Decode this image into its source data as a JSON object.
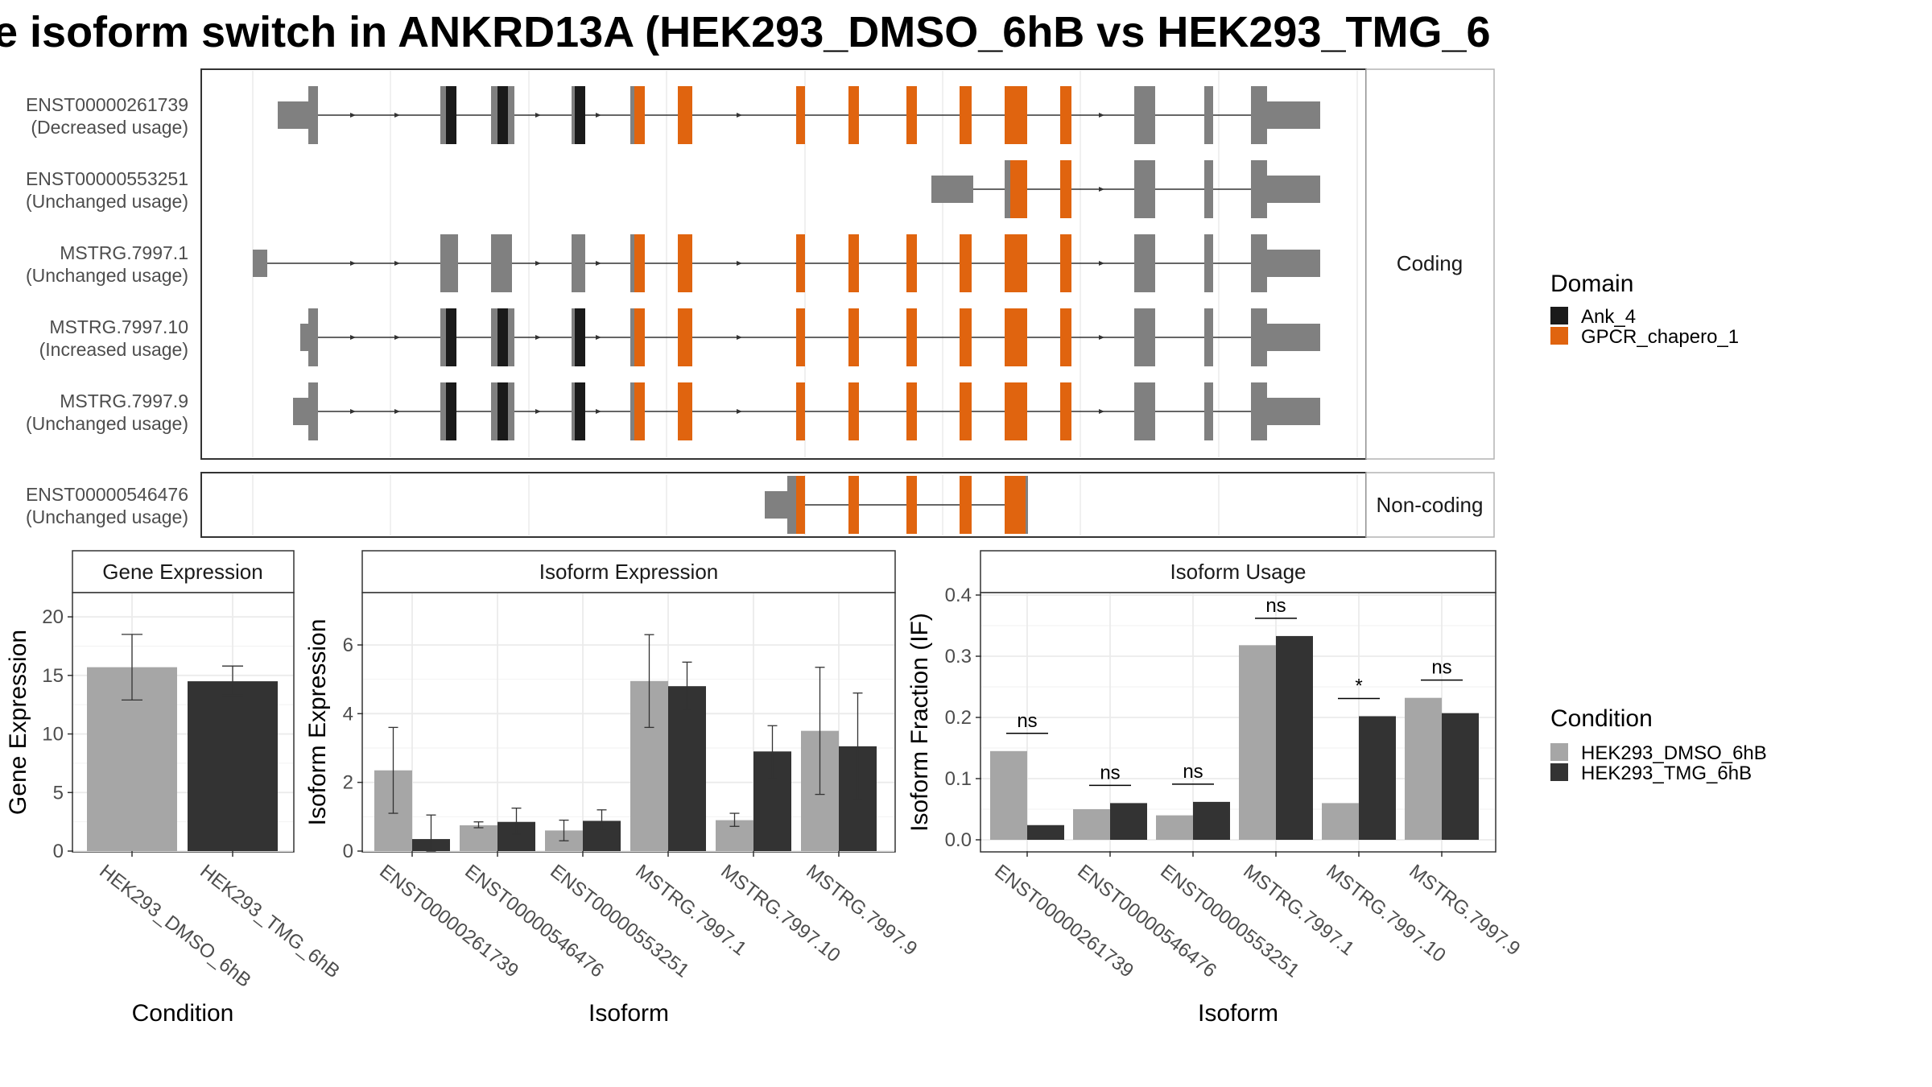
{
  "page_title": "e isoform switch in ANKRD13A (HEK293_DMSO_6hB vs HEK293_TMG_6",
  "colors": {
    "Ank_4": "#1a1a1a",
    "GPCR_chapero_1": "#e0640f",
    "utr": "#808080",
    "HEK293_DMSO_6hB": "#a6a6a6",
    "HEK293_TMG_6hB": "#333333"
  },
  "legends": {
    "domain": {
      "title": "Domain",
      "items": [
        "Ank_4",
        "GPCR_chapero_1"
      ]
    },
    "condition": {
      "title": "Condition",
      "items": [
        "HEK293_DMSO_6hB",
        "HEK293_TMG_6hB"
      ]
    }
  },
  "chart_data": [
    {
      "type": "gene-structure",
      "facets": [
        "Coding",
        "Non-coding"
      ],
      "transcripts": [
        {
          "id": "ENST00000261739",
          "usage": "(Decreased usage)",
          "facet": "Coding"
        },
        {
          "id": "ENST00000553251",
          "usage": "(Unchanged usage)",
          "facet": "Coding"
        },
        {
          "id": "MSTRG.7997.1",
          "usage": "(Unchanged usage)",
          "facet": "Coding"
        },
        {
          "id": "MSTRG.7997.10",
          "usage": "(Increased usage)",
          "facet": "Coding"
        },
        {
          "id": "MSTRG.7997.9",
          "usage": "(Unchanged usage)",
          "facet": "Coding"
        },
        {
          "id": "ENST00000546476",
          "usage": "(Unchanged usage)",
          "facet": "Non-coding"
        }
      ]
    },
    {
      "type": "bar",
      "title": "Gene Expression",
      "xlabel": "Condition",
      "ylabel": "Gene Expression",
      "ylim": [
        0,
        22
      ],
      "yticks": [
        0,
        5,
        10,
        15,
        20
      ],
      "categories": [
        "HEK293_DMSO_6hB",
        "HEK293_TMG_6hB"
      ],
      "values": [
        15.7,
        14.5
      ],
      "error_low": [
        12.9,
        13.3
      ],
      "error_high": [
        18.5,
        15.8
      ]
    },
    {
      "type": "bar",
      "title": "Isoform Expression",
      "xlabel": "Isoform",
      "ylabel": "Isoform Expression",
      "ylim": [
        0,
        7.5
      ],
      "yticks": [
        0,
        2,
        4,
        6
      ],
      "categories": [
        "ENST00000261739",
        "ENST00000546476",
        "ENST00000553251",
        "MSTRG.7997.1",
        "MSTRG.7997.10",
        "MSTRG.7997.9"
      ],
      "series": [
        {
          "name": "HEK293_DMSO_6hB",
          "values": [
            2.35,
            0.75,
            0.6,
            4.95,
            0.9,
            3.5
          ],
          "error_low": [
            1.1,
            0.68,
            0.3,
            3.6,
            0.72,
            1.65
          ],
          "error_high": [
            3.6,
            0.85,
            0.9,
            6.3,
            1.1,
            5.35
          ]
        },
        {
          "name": "HEK293_TMG_6hB",
          "values": [
            0.35,
            0.85,
            0.88,
            4.8,
            2.9,
            3.05
          ],
          "error_low": [
            0.0,
            0.5,
            0.6,
            4.1,
            2.1,
            1.5
          ],
          "error_high": [
            1.05,
            1.25,
            1.2,
            5.5,
            3.65,
            4.6
          ]
        }
      ]
    },
    {
      "type": "bar",
      "title": "Isoform Usage",
      "xlabel": "Isoform",
      "ylabel": "Isoform Fraction (IF)",
      "ylim": [
        0,
        0.4
      ],
      "yticks": [
        0.0,
        0.1,
        0.2,
        0.3,
        0.4
      ],
      "categories": [
        "ENST00000261739",
        "ENST00000546476",
        "ENST00000553251",
        "MSTRG.7997.1",
        "MSTRG.7997.10",
        "MSTRG.7997.9"
      ],
      "series": [
        {
          "name": "HEK293_DMSO_6hB",
          "values": [
            0.145,
            0.05,
            0.04,
            0.318,
            0.06,
            0.232
          ]
        },
        {
          "name": "HEK293_TMG_6hB",
          "values": [
            0.024,
            0.06,
            0.062,
            0.333,
            0.202,
            0.207
          ]
        }
      ],
      "significance": [
        "ns",
        "ns",
        "ns",
        "ns",
        "*",
        "ns"
      ]
    }
  ]
}
